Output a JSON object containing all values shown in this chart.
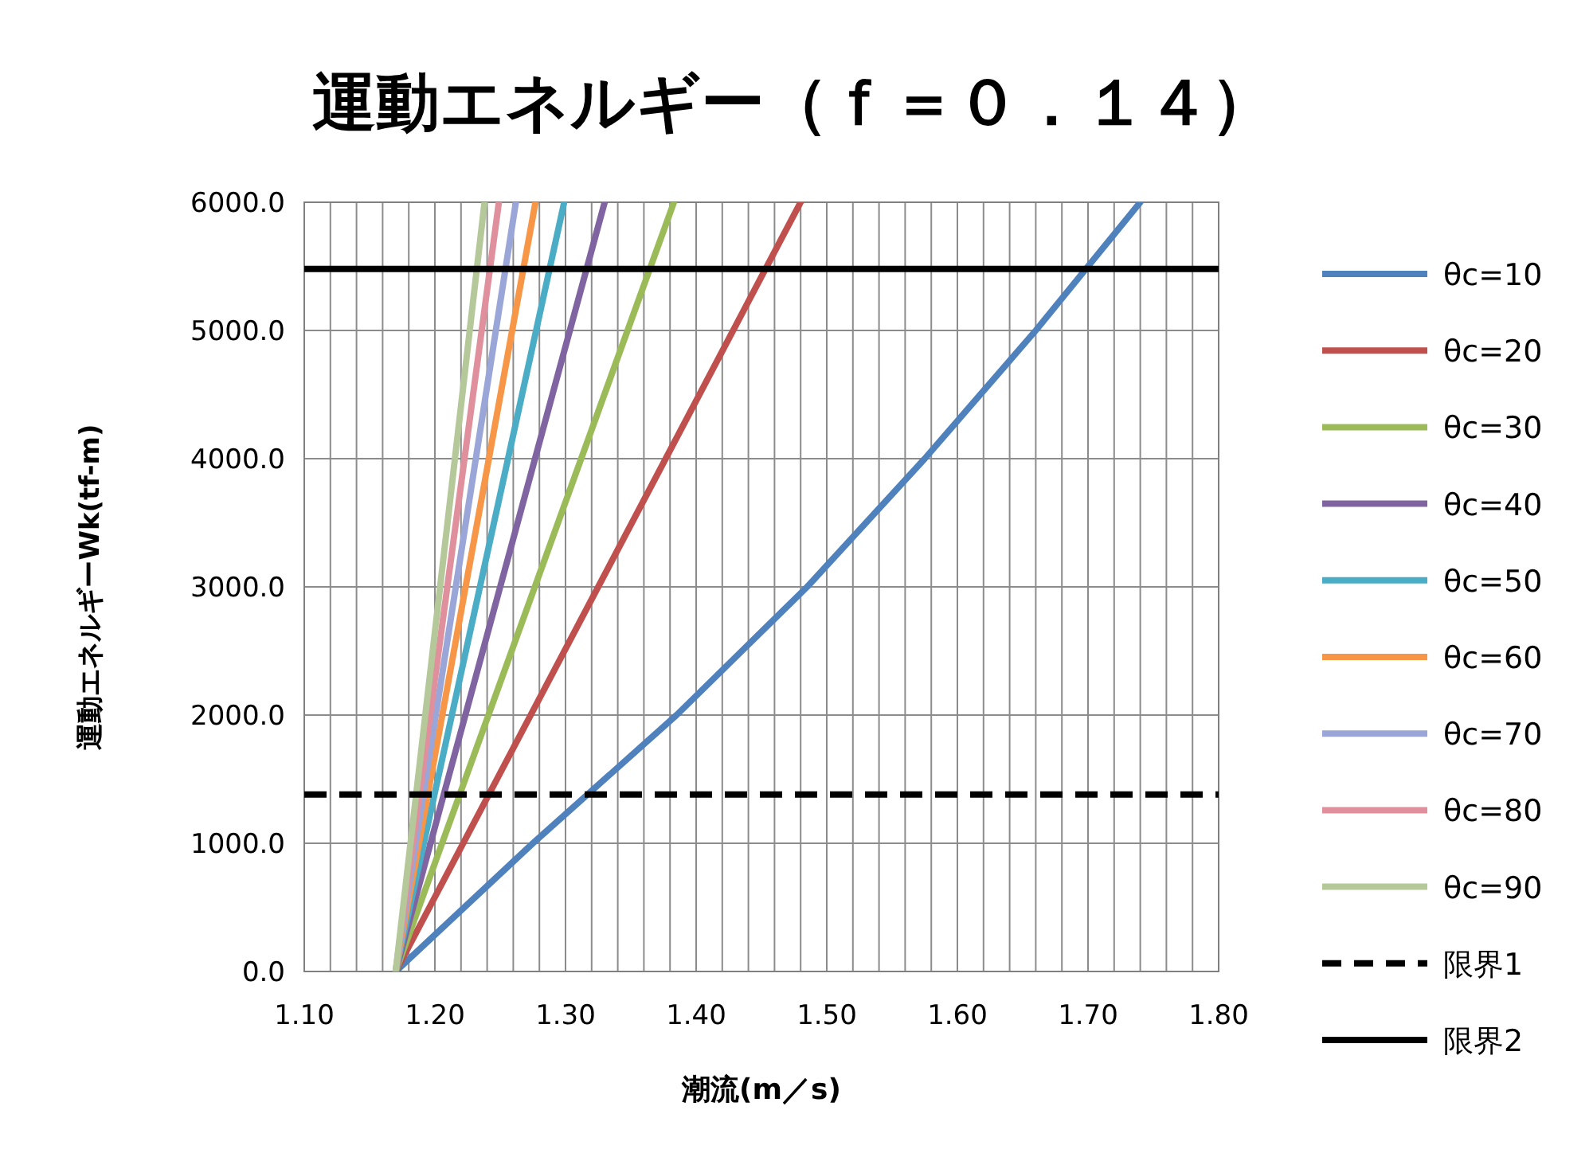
{
  "chart_data": {
    "type": "line",
    "title": "運動エネルギー（ｆ＝０．１４）",
    "xlabel": "潮流(m／s)",
    "ylabel": "運動エネルギーWk(tf-m)",
    "xlim": [
      1.1,
      1.8
    ],
    "ylim": [
      0,
      6000
    ],
    "xticks": [
      {
        "value": 1.1,
        "label": "1.10"
      },
      {
        "value": 1.12,
        "label": null
      },
      {
        "value": 1.14,
        "label": null
      },
      {
        "value": 1.16,
        "label": null
      },
      {
        "value": 1.18,
        "label": null
      },
      {
        "value": 1.2,
        "label": "1.20"
      },
      {
        "value": 1.22,
        "label": null
      },
      {
        "value": 1.24,
        "label": null
      },
      {
        "value": 1.26,
        "label": null
      },
      {
        "value": 1.28,
        "label": null
      },
      {
        "value": 1.3,
        "label": "1.30"
      },
      {
        "value": 1.32,
        "label": null
      },
      {
        "value": 1.34,
        "label": null
      },
      {
        "value": 1.36,
        "label": null
      },
      {
        "value": 1.38,
        "label": null
      },
      {
        "value": 1.4,
        "label": "1.40"
      },
      {
        "value": 1.42,
        "label": null
      },
      {
        "value": 1.44,
        "label": null
      },
      {
        "value": 1.46,
        "label": null
      },
      {
        "value": 1.48,
        "label": null
      },
      {
        "value": 1.5,
        "label": "1.50"
      },
      {
        "value": 1.52,
        "label": null
      },
      {
        "value": 1.54,
        "label": null
      },
      {
        "value": 1.56,
        "label": null
      },
      {
        "value": 1.58,
        "label": null
      },
      {
        "value": 1.6,
        "label": "1.60"
      },
      {
        "value": 1.62,
        "label": null
      },
      {
        "value": 1.64,
        "label": null
      },
      {
        "value": 1.66,
        "label": null
      },
      {
        "value": 1.68,
        "label": null
      },
      {
        "value": 1.7,
        "label": "1.70"
      },
      {
        "value": 1.72,
        "label": null
      },
      {
        "value": 1.74,
        "label": null
      },
      {
        "value": 1.76,
        "label": null
      },
      {
        "value": 1.78,
        "label": null
      },
      {
        "value": 1.8,
        "label": "1.80"
      }
    ],
    "yticks": [
      {
        "value": 0,
        "label": "0.0"
      },
      {
        "value": 1000,
        "label": "1000.0"
      },
      {
        "value": 2000,
        "label": "2000.0"
      },
      {
        "value": 3000,
        "label": "3000.0"
      },
      {
        "value": 4000,
        "label": "4000.0"
      },
      {
        "value": 5000,
        "label": "5000.0"
      },
      {
        "value": 6000,
        "label": "6000.0"
      }
    ],
    "grid": true,
    "legend": "right",
    "series": [
      {
        "name": "θc=10",
        "color": "#4f81bd",
        "x": [
          1.17,
          1.275,
          1.385,
          1.485,
          1.575,
          1.66,
          1.74
        ],
        "values": [
          0,
          1000,
          2000,
          3000,
          4000,
          5000,
          6000
        ]
      },
      {
        "name": "θc=20",
        "color": "#c0504d",
        "x": [
          1.17,
          1.48
        ],
        "values": [
          0,
          6000
        ]
      },
      {
        "name": "θc=30",
        "color": "#9bbb59",
        "x": [
          1.17,
          1.383
        ],
        "values": [
          0,
          6000
        ]
      },
      {
        "name": "θc=40",
        "color": "#8064a2",
        "x": [
          1.17,
          1.33
        ],
        "values": [
          0,
          6000
        ]
      },
      {
        "name": "θc=50",
        "color": "#4bacc6",
        "x": [
          1.17,
          1.299
        ],
        "values": [
          0,
          6000
        ]
      },
      {
        "name": "θc=60",
        "color": "#f79646",
        "x": [
          1.17,
          1.277
        ],
        "values": [
          0,
          6000
        ]
      },
      {
        "name": "θc=70",
        "color": "#9aa5d8",
        "x": [
          1.17,
          1.262
        ],
        "values": [
          0,
          6000
        ]
      },
      {
        "name": "θc=80",
        "color": "#e0909c",
        "x": [
          1.17,
          1.249
        ],
        "values": [
          0,
          6000
        ]
      },
      {
        "name": "θc=90",
        "color": "#b5c89a",
        "x": [
          1.17,
          1.238
        ],
        "values": [
          0,
          6000
        ]
      }
    ],
    "ref_lines": [
      {
        "axis": "y",
        "value": 1380,
        "label": "限界1",
        "color": "#000000",
        "line_style": "dashed"
      },
      {
        "axis": "y",
        "value": 5480,
        "label": "限界2",
        "color": "#000000",
        "line_style": "solid"
      }
    ]
  }
}
